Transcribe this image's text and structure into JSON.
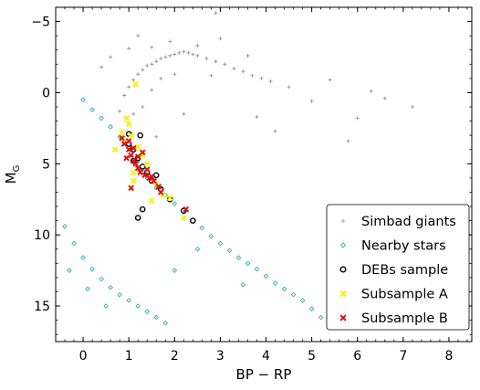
{
  "chart_data": {
    "type": "scatter",
    "xlabel": "BP − RP",
    "ylabel_main": "M",
    "ylabel_sub": "G",
    "xlim": [
      -0.6,
      8.5
    ],
    "ylim": [
      17.5,
      -6.0
    ],
    "y_inverted": true,
    "xticks": [
      0,
      1,
      2,
      3,
      4,
      5,
      6,
      7,
      8
    ],
    "xtick_labels": [
      "0",
      "1",
      "2",
      "3",
      "4",
      "5",
      "6",
      "7",
      "8"
    ],
    "yticks": [
      -5,
      0,
      5,
      10,
      15
    ],
    "ytick_labels": [
      "−5",
      "0",
      "5",
      "10",
      "15"
    ],
    "legend_position": "bottom-right",
    "series": [
      {
        "name": "Simbad giants",
        "marker": "plus",
        "color": "#8c8c8c",
        "points": [
          [
            0.9,
            0.2
          ],
          [
            1.0,
            -0.4
          ],
          [
            1.1,
            -0.9
          ],
          [
            1.2,
            -1.3
          ],
          [
            1.3,
            -1.6
          ],
          [
            1.4,
            -1.9
          ],
          [
            1.5,
            -2.0
          ],
          [
            1.6,
            -2.2
          ],
          [
            1.7,
            -2.4
          ],
          [
            1.8,
            -2.5
          ],
          [
            1.9,
            -2.6
          ],
          [
            2.0,
            -2.7
          ],
          [
            2.1,
            -2.8
          ],
          [
            2.2,
            -2.9
          ],
          [
            2.3,
            -2.8
          ],
          [
            2.4,
            -2.7
          ],
          [
            2.5,
            -2.6
          ],
          [
            2.7,
            -2.4
          ],
          [
            2.9,
            -2.2
          ],
          [
            3.1,
            -2.0
          ],
          [
            3.3,
            -1.7
          ],
          [
            3.5,
            -1.5
          ],
          [
            3.7,
            -1.2
          ],
          [
            3.9,
            -1.0
          ],
          [
            4.1,
            -0.8
          ],
          [
            1.0,
            -3.1
          ],
          [
            1.2,
            -4.0
          ],
          [
            1.5,
            -3.2
          ],
          [
            1.9,
            -3.6
          ],
          [
            2.5,
            -3.3
          ],
          [
            0.8,
            1.3
          ],
          [
            1.1,
            1.5
          ],
          [
            1.3,
            1.0
          ],
          [
            1.5,
            -0.2
          ],
          [
            1.7,
            -1.0
          ],
          [
            2.0,
            -1.3
          ],
          [
            2.8,
            -1.2
          ],
          [
            3.6,
            -2.6
          ],
          [
            4.5,
            -0.4
          ],
          [
            5.0,
            0.6
          ],
          [
            6.0,
            1.8
          ],
          [
            6.6,
            0.4
          ],
          [
            4.2,
            2.7
          ],
          [
            2.2,
            1.5
          ],
          [
            1.6,
            3.1
          ],
          [
            0.4,
            -1.8
          ],
          [
            0.6,
            -2.5
          ],
          [
            3.0,
            -3.8
          ],
          [
            5.4,
            -0.9
          ],
          [
            6.3,
            -0.1
          ],
          [
            7.2,
            1.0
          ],
          [
            2.9,
            -5.6
          ],
          [
            3.8,
            1.7
          ],
          [
            5.8,
            3.4
          ]
        ]
      },
      {
        "name": "Nearby stars",
        "marker": "diamond",
        "color": "#16a6a6",
        "points": [
          [
            0.0,
            0.5
          ],
          [
            0.2,
            1.2
          ],
          [
            0.4,
            1.8
          ],
          [
            0.6,
            2.4
          ],
          [
            0.8,
            3.1
          ],
          [
            1.0,
            3.8
          ],
          [
            1.2,
            4.8
          ],
          [
            1.3,
            5.4
          ],
          [
            1.4,
            6.0
          ],
          [
            1.6,
            6.7
          ],
          [
            1.8,
            7.2
          ],
          [
            2.0,
            7.8
          ],
          [
            2.2,
            8.4
          ],
          [
            2.4,
            9.0
          ],
          [
            2.6,
            9.5
          ],
          [
            2.8,
            10.1
          ],
          [
            3.0,
            10.6
          ],
          [
            3.2,
            11.1
          ],
          [
            3.4,
            11.6
          ],
          [
            3.6,
            12.0
          ],
          [
            3.8,
            12.4
          ],
          [
            4.0,
            12.9
          ],
          [
            4.2,
            13.4
          ],
          [
            4.4,
            13.8
          ],
          [
            4.6,
            14.2
          ],
          [
            4.8,
            14.6
          ],
          [
            5.0,
            15.2
          ],
          [
            5.2,
            15.8
          ],
          [
            5.4,
            16.1
          ],
          [
            -0.4,
            9.4
          ],
          [
            -0.2,
            10.6
          ],
          [
            0.0,
            11.6
          ],
          [
            0.2,
            12.4
          ],
          [
            0.4,
            13.1
          ],
          [
            0.6,
            13.7
          ],
          [
            0.8,
            14.2
          ],
          [
            1.0,
            14.6
          ],
          [
            1.2,
            15.0
          ],
          [
            1.4,
            15.4
          ],
          [
            1.6,
            15.8
          ],
          [
            1.8,
            16.2
          ],
          [
            -0.3,
            12.5
          ],
          [
            0.1,
            13.8
          ],
          [
            0.5,
            15.0
          ],
          [
            2.0,
            12.5
          ],
          [
            2.5,
            11.0
          ],
          [
            3.5,
            13.5
          ]
        ]
      },
      {
        "name": "DEBs sample",
        "marker": "open-circle",
        "color": "#000000",
        "points": [
          [
            1.0,
            3.6
          ],
          [
            1.1,
            4.0
          ],
          [
            1.2,
            4.6
          ],
          [
            1.3,
            5.2
          ],
          [
            1.4,
            5.6
          ],
          [
            1.5,
            6.2
          ],
          [
            1.6,
            5.8
          ],
          [
            1.7,
            6.8
          ],
          [
            1.3,
            8.2
          ],
          [
            1.2,
            8.8
          ],
          [
            1.9,
            7.5
          ],
          [
            2.4,
            9.0
          ],
          [
            1.0,
            2.9
          ],
          [
            1.1,
            4.8
          ],
          [
            1.25,
            3.0
          ],
          [
            2.2,
            8.3
          ]
        ]
      },
      {
        "name": "Subsample A",
        "marker": "x",
        "color": "#f5f500",
        "points": [
          [
            1.15,
            -0.6
          ],
          [
            0.95,
            1.8
          ],
          [
            1.0,
            2.2
          ],
          [
            0.85,
            2.8
          ],
          [
            0.7,
            4.0
          ],
          [
            0.9,
            3.4
          ],
          [
            1.05,
            3.0
          ],
          [
            1.2,
            3.8
          ],
          [
            1.3,
            4.4
          ],
          [
            1.1,
            5.6
          ],
          [
            1.4,
            5.0
          ],
          [
            1.6,
            6.4
          ],
          [
            1.75,
            7.2
          ],
          [
            1.9,
            7.4
          ],
          [
            2.2,
            8.8
          ],
          [
            1.1,
            6.2
          ],
          [
            1.5,
            7.6
          ]
        ]
      },
      {
        "name": "Subsample B",
        "marker": "x",
        "color": "#e01010",
        "points": [
          [
            0.85,
            3.2
          ],
          [
            0.9,
            3.6
          ],
          [
            1.0,
            4.0
          ],
          [
            1.05,
            4.4
          ],
          [
            1.1,
            4.8
          ],
          [
            1.15,
            5.0
          ],
          [
            1.2,
            5.3
          ],
          [
            1.25,
            5.6
          ],
          [
            1.3,
            4.2
          ],
          [
            1.35,
            5.8
          ],
          [
            1.45,
            6.0
          ],
          [
            1.55,
            6.2
          ],
          [
            1.65,
            6.6
          ],
          [
            1.0,
            3.4
          ],
          [
            1.1,
            3.9
          ],
          [
            1.2,
            4.5
          ],
          [
            1.4,
            5.4
          ],
          [
            1.5,
            5.9
          ],
          [
            1.7,
            7.0
          ],
          [
            2.25,
            8.2
          ],
          [
            1.05,
            6.7
          ],
          [
            0.95,
            4.6
          ]
        ]
      }
    ]
  }
}
